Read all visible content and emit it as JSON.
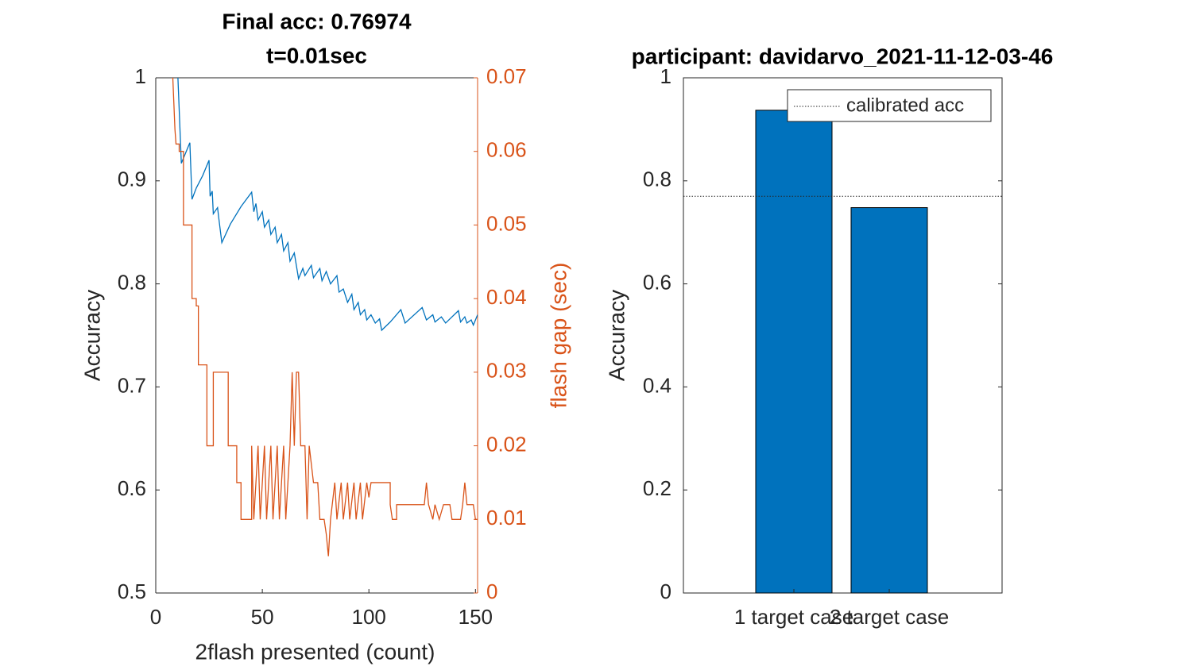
{
  "chart_data": [
    {
      "type": "line",
      "title": [
        "Final acc: 0.76974",
        "t=0.01sec"
      ],
      "x_label": "2flash presented (count)",
      "y_label": "Accuracy",
      "y2_label": "flash gap (sec)",
      "y2_color": "#D95319",
      "xlim": [
        0,
        151
      ],
      "xticks": [
        0,
        50,
        100,
        150
      ],
      "ylim": [
        0.5,
        1
      ],
      "yticks": [
        0.5,
        0.6,
        0.7,
        0.8,
        0.9,
        1
      ],
      "y2lim": [
        0,
        0.07
      ],
      "y2ticks": [
        0,
        0.01,
        0.02,
        0.03,
        0.04,
        0.05,
        0.06,
        0.07
      ],
      "series": [
        {
          "color": "#0072BD",
          "axis": "y",
          "x": [
            10.4,
            12,
            16,
            17,
            19,
            22,
            25,
            25.5,
            26.5,
            27,
            29,
            29.5,
            31,
            35,
            40,
            45,
            46,
            47,
            48,
            50,
            51,
            53,
            54,
            56,
            57,
            59,
            60,
            62,
            63,
            65,
            67,
            69,
            70,
            73,
            74,
            77,
            78,
            80,
            82,
            85,
            86,
            88,
            90,
            92,
            93,
            95,
            96,
            98,
            99,
            101,
            103,
            105,
            106,
            110,
            115,
            117,
            125,
            127,
            130,
            131,
            134,
            136,
            142,
            143,
            145,
            146,
            148,
            149,
            151
          ],
          "values": [
            1.0,
            0.917,
            0.937,
            0.882,
            0.893,
            0.905,
            0.92,
            0.885,
            0.89,
            0.868,
            0.874,
            0.865,
            0.84,
            0.858,
            0.875,
            0.889,
            0.87,
            0.878,
            0.862,
            0.87,
            0.855,
            0.862,
            0.848,
            0.855,
            0.84,
            0.848,
            0.832,
            0.84,
            0.822,
            0.83,
            0.805,
            0.815,
            0.808,
            0.818,
            0.806,
            0.815,
            0.803,
            0.812,
            0.8,
            0.808,
            0.792,
            0.795,
            0.782,
            0.79,
            0.775,
            0.782,
            0.77,
            0.775,
            0.765,
            0.77,
            0.762,
            0.766,
            0.755,
            0.763,
            0.775,
            0.762,
            0.777,
            0.765,
            0.77,
            0.763,
            0.768,
            0.762,
            0.774,
            0.763,
            0.768,
            0.762,
            0.765,
            0.76,
            0.77
          ]
        },
        {
          "color": "#D95319",
          "axis": "y2",
          "x": [
            7.5,
            8,
            9,
            9.5,
            11,
            11,
            13,
            13,
            17,
            17,
            19,
            19,
            20,
            20,
            24,
            24,
            24,
            27,
            27,
            34,
            34,
            38,
            38,
            40,
            40,
            45,
            45,
            46,
            48,
            49,
            51,
            52,
            54,
            55,
            57,
            58,
            60,
            61,
            63,
            64,
            65,
            66,
            67,
            68,
            70,
            71,
            72,
            74,
            76,
            77,
            79,
            80,
            81,
            82,
            84,
            85,
            87,
            88,
            90,
            91,
            93,
            94,
            96,
            97,
            99,
            100,
            101,
            110,
            110,
            111,
            113,
            113,
            126,
            127,
            128,
            130,
            131,
            133,
            135,
            138,
            139,
            143,
            144,
            145,
            146,
            149,
            150,
            151
          ],
          "values": [
            0.07,
            0.07,
            0.063,
            0.061,
            0.061,
            0.06,
            0.06,
            0.05,
            0.05,
            0.04,
            0.04,
            0.039,
            0.039,
            0.031,
            0.031,
            0.03,
            0.02,
            0.02,
            0.03,
            0.03,
            0.02,
            0.02,
            0.015,
            0.015,
            0.01,
            0.01,
            0.02,
            0.01,
            0.02,
            0.01,
            0.02,
            0.01,
            0.02,
            0.01,
            0.02,
            0.01,
            0.02,
            0.01,
            0.02,
            0.03,
            0.02,
            0.03,
            0.03,
            0.02,
            0.02,
            0.01,
            0.02,
            0.015,
            0.015,
            0.01,
            0.01,
            0.008,
            0.005,
            0.01,
            0.015,
            0.01,
            0.015,
            0.01,
            0.015,
            0.01,
            0.015,
            0.01,
            0.015,
            0.01,
            0.015,
            0.013,
            0.015,
            0.015,
            0.012,
            0.01,
            0.01,
            0.012,
            0.012,
            0.015,
            0.012,
            0.01,
            0.012,
            0.01,
            0.012,
            0.012,
            0.01,
            0.01,
            0.012,
            0.015,
            0.012,
            0.012,
            0.01,
            0.01
          ]
        }
      ]
    },
    {
      "type": "bar",
      "title": "participant: davidarvo_2021-11-12-03-46",
      "y_label": "Accuracy",
      "categories": [
        "1 target case",
        "2 target case"
      ],
      "values": [
        0.937,
        0.748
      ],
      "color": "#0072BD",
      "ylim": [
        0,
        1
      ],
      "yticks": [
        0,
        0.2,
        0.4,
        0.6,
        0.8,
        1
      ],
      "reference_line": {
        "name": "calibrated acc",
        "value": 0.77,
        "style": "dotted"
      },
      "legend": "northeast"
    }
  ]
}
